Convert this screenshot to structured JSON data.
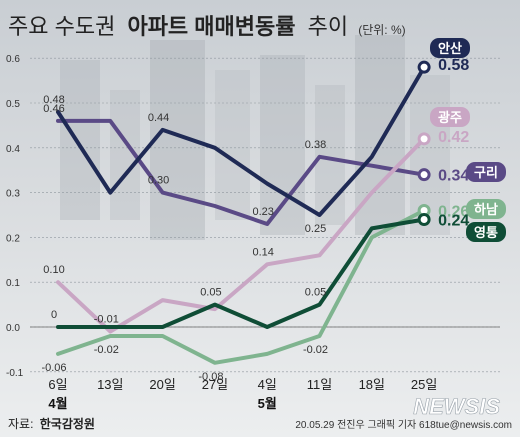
{
  "chart_data": {
    "type": "line",
    "title_regular": "주요 수도권",
    "title_bold": "아파트 매매변동률",
    "title_suffix": "추이",
    "unit": "(단위: %)",
    "categories": [
      "6일",
      "13일",
      "20일",
      "27일",
      "4일",
      "11일",
      "18일",
      "25일"
    ],
    "month_labels": [
      {
        "label": "4월",
        "index": 0
      },
      {
        "label": "5월",
        "index": 4
      }
    ],
    "ylim": [
      -0.1,
      0.6
    ],
    "yticks": [
      "-0.1",
      "0.0",
      "0.1",
      "0.2",
      "0.3",
      "0.4",
      "0.5",
      "0.6"
    ],
    "grid": true,
    "series": [
      {
        "name": "구리",
        "color": "#5a4a86",
        "values": [
          0.46,
          0.46,
          0.3,
          0.27,
          0.23,
          0.38,
          0.36,
          0.34
        ],
        "end_label": "0.34",
        "labels": {
          "0": "0.46",
          "2": "0.30",
          "4": "0.23",
          "5": "0.38"
        }
      },
      {
        "name": "광주",
        "color": "#c9a6c4",
        "values": [
          0.1,
          -0.01,
          0.06,
          0.04,
          0.14,
          0.16,
          0.3,
          0.42
        ],
        "end_label": "0.42",
        "labels": {
          "0": "0.10",
          "1": "-0.01",
          "4": "0.14"
        }
      },
      {
        "name": "하남",
        "color": "#7fb48f",
        "values": [
          -0.06,
          -0.02,
          -0.02,
          -0.08,
          -0.06,
          -0.02,
          0.2,
          0.26
        ],
        "end_label": "0.26",
        "labels": {
          "0": "-0.06",
          "1": "-0.02",
          "3": "-0.08",
          "5": "-0.02"
        }
      },
      {
        "name": "영통",
        "color": "#0f4d36",
        "values": [
          0.0,
          0.0,
          0.0,
          0.05,
          0.0,
          0.05,
          0.22,
          0.24
        ],
        "end_label": "0.24",
        "labels": {
          "0": "0",
          "3": "0.05",
          "5": "0.05"
        }
      },
      {
        "name": "안산",
        "color": "#1f2a55",
        "values": [
          0.48,
          0.3,
          0.44,
          0.4,
          0.32,
          0.25,
          0.38,
          0.58
        ],
        "end_label": "0.58",
        "labels": {
          "0": "0.48",
          "2": "0.44",
          "5": "0.25"
        }
      }
    ]
  },
  "footer": {
    "source_prefix": "자료:",
    "source": "한국감정원",
    "credit": "20.05.29 전진우 그래픽 기자 618tue@newsis.com"
  },
  "logo": {
    "text": "NEWSIS"
  }
}
